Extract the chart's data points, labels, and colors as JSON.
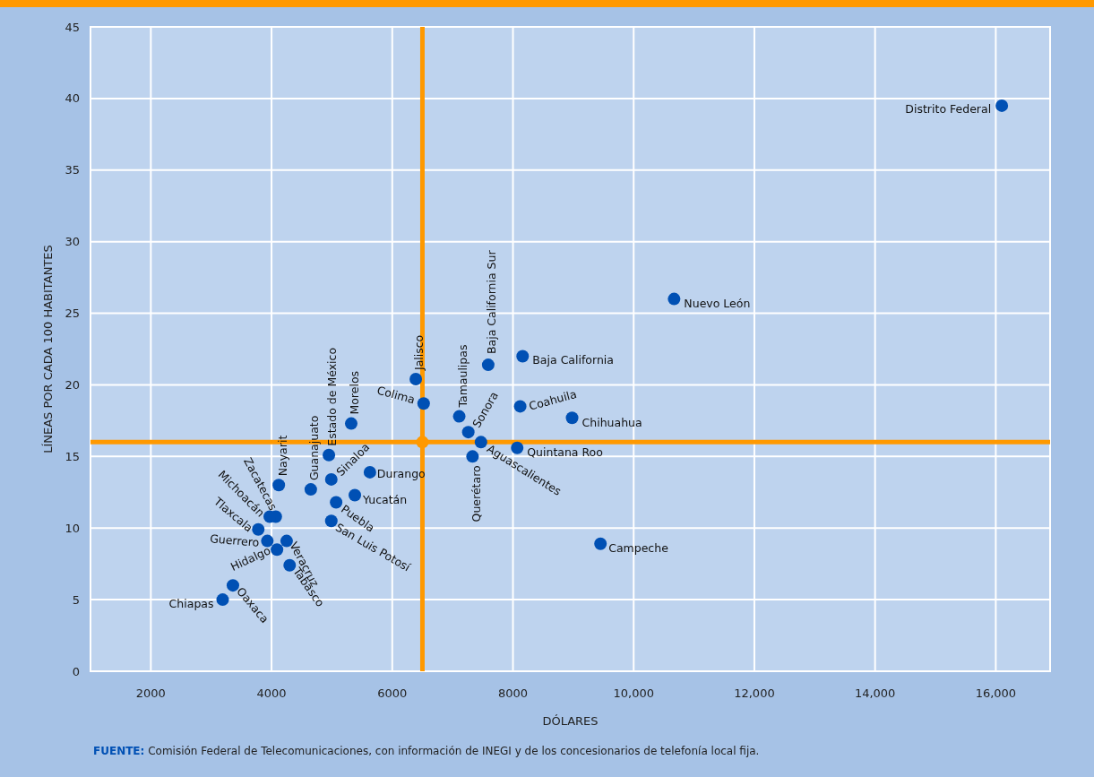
{
  "chart_data": {
    "type": "scatter",
    "xlabel": "DÓLARES",
    "ylabel": "LÍNEAS POR CADA 100 HABITANTES",
    "xlim": [
      1000,
      16900
    ],
    "ylim": [
      0,
      45
    ],
    "xticks": [
      2000,
      4000,
      6000,
      8000,
      {
        "value": 10000,
        "label": "10,000"
      },
      {
        "value": 12000,
        "label": "12,000"
      },
      {
        "value": 14000,
        "label": "14,000"
      },
      {
        "value": 16000,
        "label": "16,000"
      }
    ],
    "yticks": [
      0,
      5,
      10,
      15,
      20,
      25,
      30,
      35,
      40,
      45
    ],
    "grid": true,
    "marker": "circle",
    "series": [
      {
        "color": "#0050b4",
        "x": [
          16100,
          10670,
          8160,
          7590,
          8120,
          8980,
          8070,
          9450,
          6390,
          6520,
          7110,
          7260,
          7470,
          7330,
          5320,
          4950,
          4990,
          5630,
          5380,
          5070,
          4990,
          4650,
          4120,
          4070,
          3970,
          3780,
          3930,
          4250,
          4090,
          4300,
          3360,
          3190
        ],
        "values": [
          39.5,
          26.0,
          22.0,
          21.4,
          18.5,
          17.7,
          15.6,
          8.9,
          20.4,
          18.7,
          17.8,
          16.7,
          16.0,
          15.0,
          17.3,
          15.1,
          13.4,
          13.9,
          12.3,
          11.8,
          10.5,
          12.7,
          13.0,
          10.8,
          10.8,
          9.9,
          9.1,
          9.1,
          8.5,
          7.4,
          6.0,
          5.0
        ]
      }
    ],
    "ref_lines": [
      {
        "axis": "x",
        "value": 6500,
        "color": "#ff9900"
      },
      {
        "axis": "y",
        "value": 16,
        "color": "#ff9900"
      }
    ],
    "annotations": [
      {
        "text": "Distrito Federal",
        "x": 16100,
        "y": 39.5
      },
      {
        "text": "Nuevo León",
        "x": 10670,
        "y": 26.0
      },
      {
        "text": "Baja California",
        "x": 8160,
        "y": 22.0
      },
      {
        "text": "Baja California Sur",
        "x": 7590,
        "y": 21.4
      },
      {
        "text": "Coahuila",
        "x": 8120,
        "y": 18.5
      },
      {
        "text": "Chihuahua",
        "x": 8980,
        "y": 17.7
      },
      {
        "text": "Quintana Roo",
        "x": 8070,
        "y": 15.6
      },
      {
        "text": "Campeche",
        "x": 9450,
        "y": 8.9
      },
      {
        "text": "Jalisco",
        "x": 6390,
        "y": 20.4
      },
      {
        "text": "Colima",
        "x": 6520,
        "y": 18.7
      },
      {
        "text": "Tamaulipas",
        "x": 7110,
        "y": 17.8
      },
      {
        "text": "Sonora",
        "x": 7260,
        "y": 16.7
      },
      {
        "text": "Aguascalientes",
        "x": 7470,
        "y": 16.0
      },
      {
        "text": "Querétaro",
        "x": 7330,
        "y": 15.0
      },
      {
        "text": "Morelos",
        "x": 5320,
        "y": 17.3
      },
      {
        "text": "Estado de México",
        "x": 4950,
        "y": 15.1
      },
      {
        "text": "Sinaloa",
        "x": 4990,
        "y": 13.4
      },
      {
        "text": "Durango",
        "x": 5630,
        "y": 13.9
      },
      {
        "text": "Yucatán",
        "x": 5380,
        "y": 12.3
      },
      {
        "text": "Puebla",
        "x": 5070,
        "y": 11.8
      },
      {
        "text": "San Luis Potosí",
        "x": 4990,
        "y": 10.5
      },
      {
        "text": "Guanajuato",
        "x": 4650,
        "y": 12.7
      },
      {
        "text": "Nayarit",
        "x": 4120,
        "y": 13.0
      },
      {
        "text": "Zacatecas",
        "x": 4070,
        "y": 10.8
      },
      {
        "text": "Michoacán",
        "x": 3970,
        "y": 10.8
      },
      {
        "text": "Tlaxcala",
        "x": 3780,
        "y": 9.9
      },
      {
        "text": "Guerrero",
        "x": 3930,
        "y": 9.1
      },
      {
        "text": "Veracruz",
        "x": 4250,
        "y": 9.1
      },
      {
        "text": "Hidalgo",
        "x": 4090,
        "y": 8.5
      },
      {
        "text": "Tabasco",
        "x": 4300,
        "y": 7.4
      },
      {
        "text": "Oaxaca",
        "x": 3360,
        "y": 6.0
      },
      {
        "text": "Chiapas",
        "x": 3190,
        "y": 5.0
      },
      "FUENTE: Comisión Federal de Telecomunicaciones, con información de INEGI y de los concesionarios de telefonía local fija."
    ]
  }
}
